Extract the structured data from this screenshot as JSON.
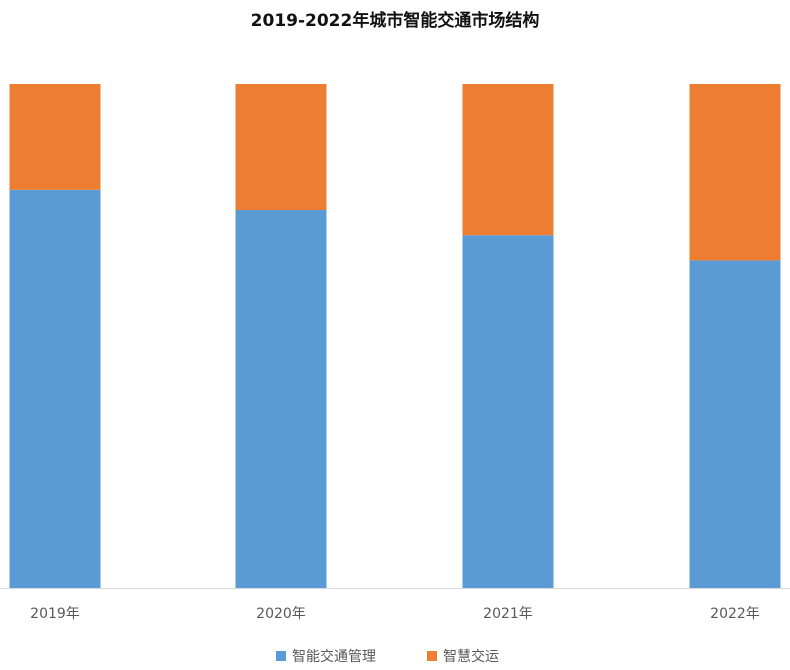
{
  "chart_data": {
    "type": "bar",
    "stacked": true,
    "percent": true,
    "title": "2019-2022年城市智能交通市场结构",
    "xlabel": "",
    "ylabel": "",
    "categories": [
      "2019年",
      "2020年",
      "2021年",
      "2022年"
    ],
    "series": [
      {
        "name": "智能交通管理",
        "color": "#5b9bd5",
        "values": [
          79,
          75,
          70,
          65
        ]
      },
      {
        "name": "智慧交运",
        "color": "#ed7d31",
        "values": [
          21,
          25,
          30,
          35
        ]
      }
    ],
    "ylim": [
      0,
      100
    ],
    "grid": false,
    "legend": "bottom",
    "axis_line_color": "#d9d9d9",
    "tick_label_color": "#595959"
  }
}
